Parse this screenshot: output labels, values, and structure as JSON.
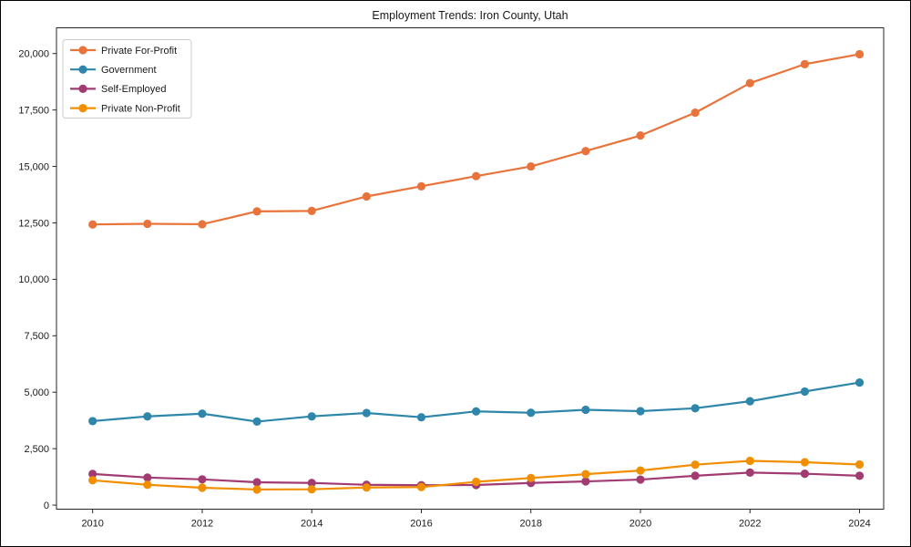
{
  "figure": {
    "title": "Employment Trends: Iron County, Utah"
  },
  "chart_data": {
    "type": "line",
    "title": "Employment Trends: Iron County, Utah",
    "xlabel": "",
    "ylabel": "",
    "x": [
      2010,
      2011,
      2012,
      2013,
      2014,
      2015,
      2016,
      2017,
      2018,
      2019,
      2020,
      2021,
      2022,
      2023,
      2024
    ],
    "x_tick_labels": [
      "2010",
      "2012",
      "2014",
      "2016",
      "2018",
      "2020",
      "2022",
      "2024"
    ],
    "x_ticks": [
      2010,
      2012,
      2014,
      2016,
      2018,
      2020,
      2022,
      2024
    ],
    "y_ticks": [
      0,
      2500,
      5000,
      7500,
      10000,
      12500,
      15000,
      17500,
      20000
    ],
    "y_tick_labels": [
      "0",
      "2,500",
      "5,000",
      "7,500",
      "10,000",
      "12,500",
      "15,000",
      "17,500",
      "20,000"
    ],
    "ylim": [
      -180,
      21140
    ],
    "xlim": [
      2009.34,
      2024.44
    ],
    "grid": false,
    "legend_position": "upper-left",
    "series": [
      {
        "name": "Private For-Profit",
        "color": "#E8743B",
        "values": [
          12430,
          12460,
          12440,
          13010,
          13030,
          13670,
          14120,
          14570,
          15000,
          15680,
          16370,
          17380,
          18690,
          19530,
          19970
        ]
      },
      {
        "name": "Government",
        "color": "#2E86AB",
        "values": [
          3720,
          3930,
          4050,
          3700,
          3930,
          4080,
          3890,
          4150,
          4090,
          4220,
          4160,
          4290,
          4600,
          5030,
          5430
        ]
      },
      {
        "name": "Self-Employed",
        "color": "#A23B72",
        "values": [
          1380,
          1220,
          1140,
          1010,
          980,
          900,
          880,
          890,
          980,
          1050,
          1130,
          1300,
          1440,
          1390,
          1300
        ]
      },
      {
        "name": "Private Non-Profit",
        "color": "#F18F01",
        "values": [
          1100,
          900,
          770,
          690,
          700,
          780,
          800,
          1030,
          1200,
          1370,
          1530,
          1790,
          1960,
          1900,
          1800
        ]
      }
    ]
  }
}
